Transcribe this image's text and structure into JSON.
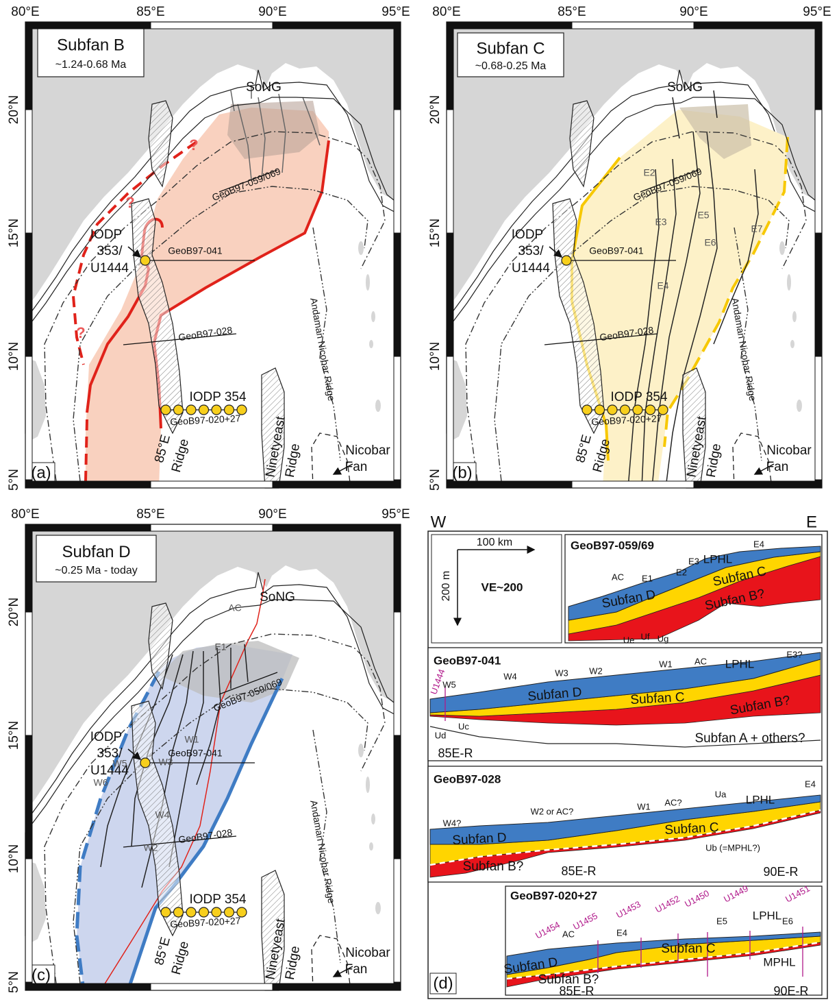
{
  "maps": [
    {
      "label": "(a)",
      "title": "Subfan B",
      "subtitle": "~1.24-0.68 Ma",
      "lon_ticks": [
        "80°E",
        "85°E",
        "90°E",
        "95°E"
      ],
      "lat_ticks": [
        "20°N",
        "15°N",
        "10°N",
        "5°N"
      ],
      "features": [
        "SoNG",
        "GeoB97-059/069",
        "IODP",
        "353/",
        "U1444",
        "GeoB97-041",
        "GeoB97-028",
        "IODP 354",
        "GeoB97-020+27",
        "85°E",
        "Ridge",
        "Ninetyeast",
        "Ridge",
        "Andaman Nicobar Ridge",
        "Nicobar",
        "Fan"
      ],
      "marks": [
        "?",
        "?",
        "?"
      ]
    },
    {
      "label": "(b)",
      "title": "Subfan C",
      "subtitle": "~0.68-0.25 Ma",
      "lon_ticks": [
        "80°E",
        "85°E",
        "90°E",
        "95°E"
      ],
      "lat_ticks": [
        "20°N",
        "15°N",
        "10°N",
        "5°N"
      ],
      "features": [
        "SoNG",
        "GeoB97-059/069",
        "IODP",
        "353/",
        "U1444",
        "GeoB97-041",
        "GeoB97-028",
        "IODP 354",
        "GeoB97-020+27",
        "85°E",
        "Ridge",
        "Ninetyeast",
        "Ridge",
        "Andaman Nicobar Ridge",
        "Nicobar",
        "Fan"
      ],
      "marks": [
        "E2",
        "E3",
        "E4",
        "E5",
        "E6",
        "E7"
      ]
    },
    {
      "label": "(c)",
      "title": "Subfan D",
      "subtitle": "~0.25 Ma - today",
      "lon_ticks": [
        "80°E",
        "85°E",
        "90°E",
        "95°E"
      ],
      "lat_ticks": [
        "20°N",
        "15°N",
        "10°N",
        "5°N"
      ],
      "features": [
        "SoNG",
        "GeoB97-059/069",
        "IODP",
        "353/",
        "U1444",
        "GeoB97-041",
        "GeoB97-028",
        "IODP 354",
        "GeoB97-020+27",
        "85°E",
        "Ridge",
        "Ninetyeast",
        "Ridge",
        "Andaman Nicobar Ridge",
        "Nicobar",
        "Fan"
      ],
      "marks": [
        "AC",
        "E1",
        "W1",
        "W2",
        "W3",
        "W4",
        "W5",
        "W6"
      ]
    }
  ],
  "profiles": {
    "label": "(d)",
    "west": "W",
    "east": "E",
    "scale": {
      "horizontal": "100 km",
      "vertical": "200 m",
      "exaggeration": "VE~200"
    },
    "sections": [
      {
        "title": "GeoB97-059/69",
        "labels": [
          "LPHL",
          "E4",
          "E3",
          "E2",
          "AC",
          "E1",
          "Subfan C",
          "Subfan D",
          "Subfan B?",
          "Ue",
          "Uf",
          "Ug"
        ]
      },
      {
        "title": "GeoB97-041",
        "labels": [
          "U1444",
          "W5",
          "W4",
          "W3",
          "W2",
          "W1",
          "AC",
          "LPHL",
          "E3?",
          "Subfan D",
          "Subfan C",
          "Subfan B?",
          "Ud",
          "Uc",
          "Subfan A + others?",
          "85E-R"
        ]
      },
      {
        "title": "GeoB97-028",
        "labels": [
          "W4?",
          "W2 or AC?",
          "W1",
          "AC?",
          "Ua",
          "LPHL",
          "E4",
          "Subfan D",
          "Subfan C",
          "Subfan B?",
          "Ub (=MPHL?)",
          "85E-R",
          "90E-R"
        ]
      },
      {
        "title": "GeoB97-020+27",
        "labels": [
          "U1454",
          "AC",
          "U1455",
          "E4",
          "U1453",
          "U1452",
          "U1450",
          "E5",
          "U1449",
          "LPHL",
          "U1451",
          "E6",
          "Subfan D",
          "Subfan C",
          "MPHL",
          "Subfan B?",
          "85E-R",
          "90E-R"
        ]
      }
    ]
  }
}
